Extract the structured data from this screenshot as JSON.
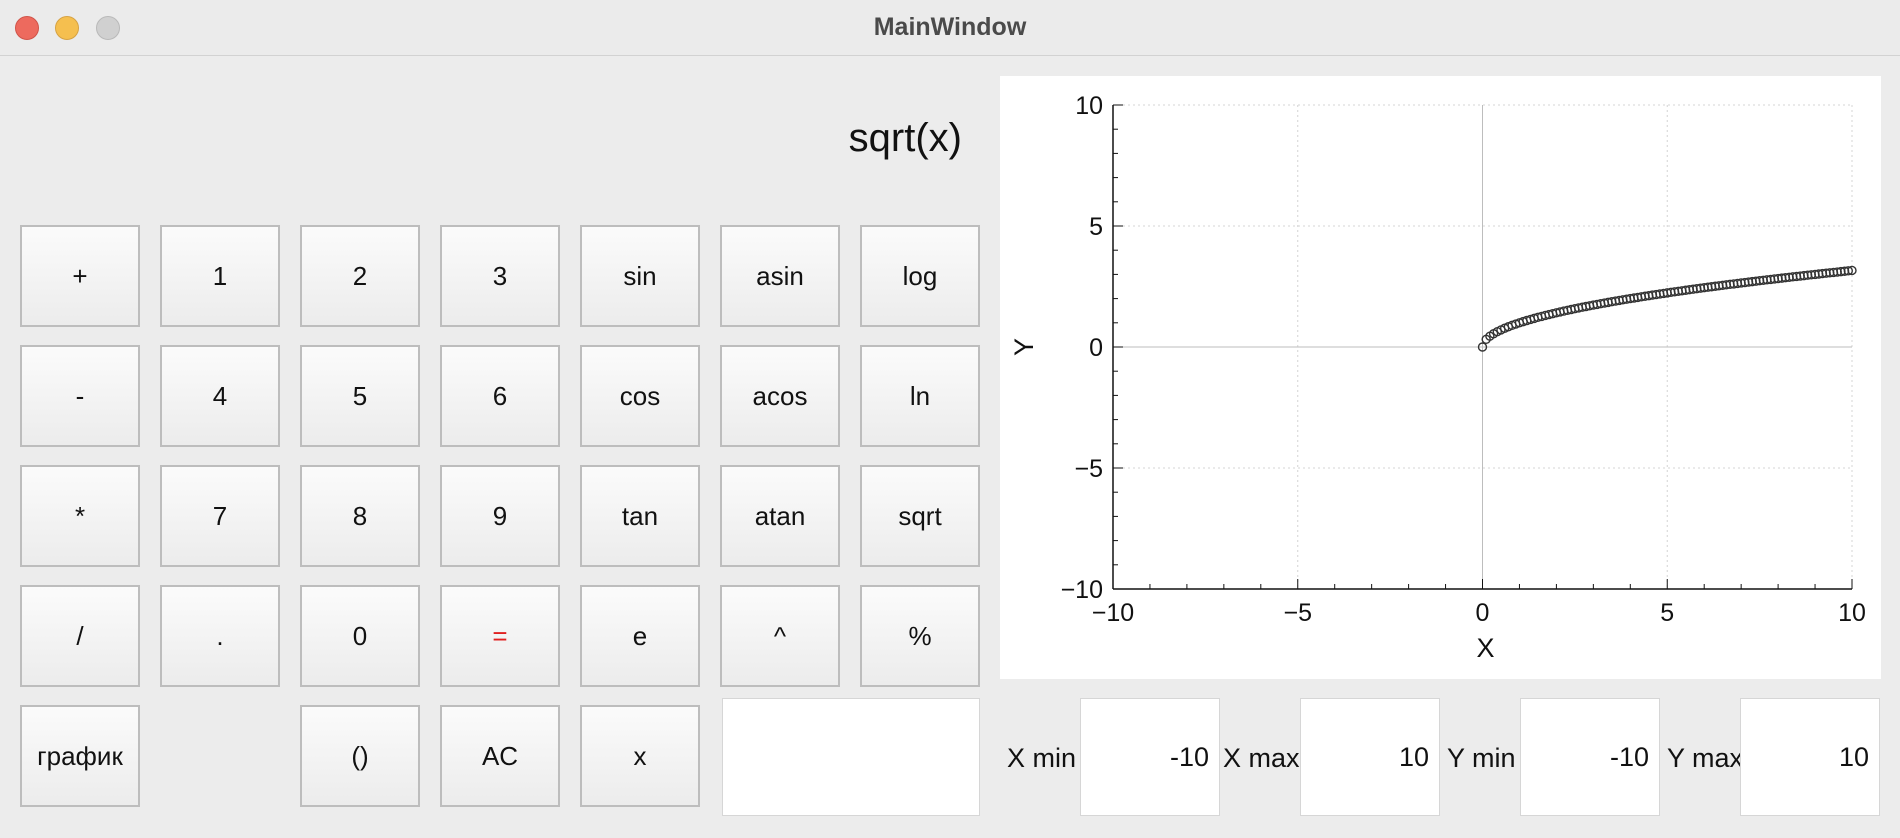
{
  "window": {
    "title": "MainWindow"
  },
  "display": {
    "expression": "sqrt(x)"
  },
  "keypad": {
    "rows": [
      [
        "+",
        "1",
        "2",
        "3",
        "sin",
        "asin",
        "log"
      ],
      [
        "-",
        "4",
        "5",
        "6",
        "cos",
        "acos",
        "ln"
      ],
      [
        "*",
        "7",
        "8",
        "9",
        "tan",
        "atan",
        "sqrt"
      ],
      [
        "/",
        ".",
        "0",
        "=",
        "e",
        "^",
        "%"
      ],
      [
        "график",
        "",
        "()",
        "AC",
        "x",
        "",
        ""
      ]
    ],
    "equals_color": "#e02020"
  },
  "expression_input": {
    "value": ""
  },
  "limits": {
    "x_min_label": "X min",
    "x_min_value": "-10",
    "x_max_label": "X max",
    "x_max_value": "10",
    "y_min_label": "Y min",
    "y_min_value": "-10",
    "y_max_label": "Y max",
    "y_max_value": "10"
  },
  "chart_data": {
    "type": "scatter",
    "function": "sqrt(x)",
    "xlabel": "X",
    "ylabel": "Y",
    "xlim": [
      -10,
      10
    ],
    "ylim": [
      -10,
      10
    ],
    "xticks": [
      "−10",
      "−5",
      "0",
      "5",
      "10"
    ],
    "yticks": [
      "10",
      "5",
      "0",
      "−5",
      "−10"
    ],
    "grid": true,
    "series": [
      {
        "marker": "open-circle",
        "color": "#333333",
        "x_range": [
          0,
          10
        ],
        "step": 0.1
      }
    ]
  }
}
